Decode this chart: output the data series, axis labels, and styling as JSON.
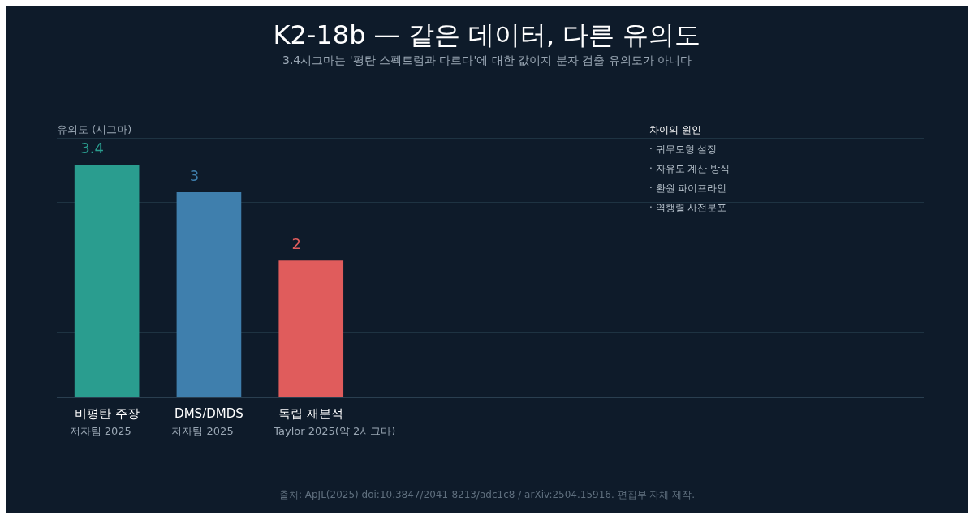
{
  "chart_data": {
    "type": "bar",
    "title": "K2-18b — 같은 데이터, 다른 유의도",
    "subtitle": "3.4시그마는 '평탄 스펙트럼과 다르다'에 대한 값이지 분자 검출 유의도가 아니다",
    "ylabel": "유의도 (시그마)",
    "categories": [
      "비평탄 주장",
      "DMS/DMDS",
      "독립 재분석"
    ],
    "values": [
      3.4,
      3,
      2
    ],
    "colors": [
      "#2a9d8f",
      "#3f7fad",
      "#e05c5c"
    ],
    "data_labels": true,
    "ylim": [
      0,
      3.8
    ],
    "yticks": [
      {
        "value": 0,
        "label": null
      },
      {
        "value": 0.95,
        "label": null
      },
      {
        "value": 1.9,
        "label": null
      },
      {
        "value": 2.85,
        "label": null
      },
      {
        "value": 3.8,
        "label": null
      }
    ],
    "grid": "y",
    "annotations": [
      "저자팀 2025",
      "저자팀 2025",
      "Taylor 2025(약 2시그마)",
      "차이의 원인",
      "· 귀무모형 설정",
      "· 자유도 계산 방식",
      "· 환원 파이프라인",
      "· 역행렬 사전분포",
      "출처: ApJL(2025) doi:10.3847/2041-8213/adc1c8 / arXiv:2504.15916. 편집부 자체 제작."
    ]
  }
}
